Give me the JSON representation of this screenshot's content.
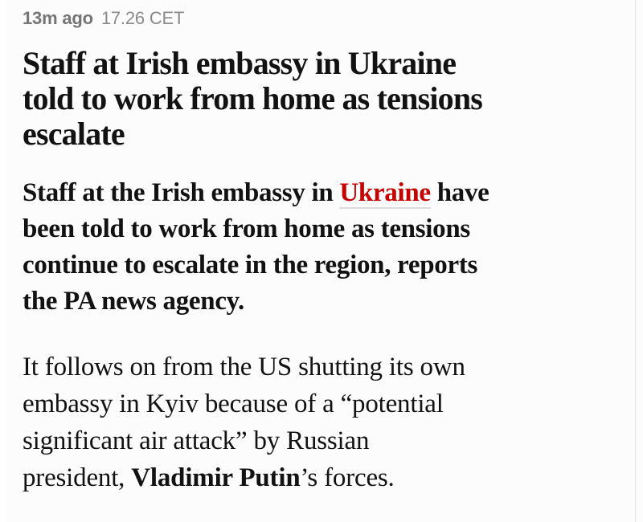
{
  "colors": {
    "text": "#121212",
    "link-red": "#c70000",
    "meta-gray": "#757575",
    "time-gray": "#8a8a8a",
    "underline-gray": "#dcdcdc"
  },
  "post": {
    "meta": {
      "ago": "13m ago",
      "time": "17.26 CET"
    },
    "headline": {
      "full": "Staff at Irish embassy in Ukraine told to work from home as tensions escalate",
      "lines": [
        "Staff at Irish embassy in Ukraine",
        "told to work from home as tensions",
        "escalate"
      ]
    },
    "lead": {
      "line1_before_link": "Staff at the Irish embassy in ",
      "line1_link": "Ukraine",
      "line1_after_link": " have",
      "line2": "been told to work from home as tensions",
      "line3": "continue to escalate in the region, reports",
      "line4": "the PA news agency."
    },
    "body": {
      "line1": "It follows on from the US shutting its own",
      "line2": "embassy in Kyiv because of a “potential",
      "line3": "significant air attack” by Russian",
      "line4_before_bold": "president, ",
      "line4_bold": "Vladimir Putin",
      "line4_after_bold": "’s forces."
    }
  }
}
